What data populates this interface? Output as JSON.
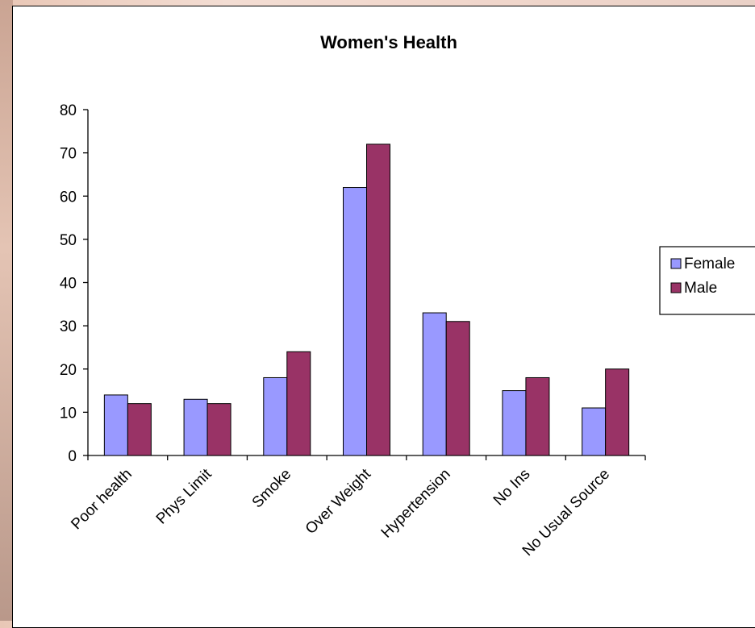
{
  "chart_data": {
    "type": "bar",
    "title": "Women's Health",
    "xlabel": "",
    "ylabel": "",
    "categories": [
      "Poor health",
      "Phys Limit",
      "Smoke",
      "Over Weight",
      "Hypertension",
      "No Ins",
      "No Usual Source"
    ],
    "series": [
      {
        "name": "Female",
        "values": [
          14,
          13,
          18,
          62,
          33,
          15,
          11
        ],
        "color": "#9999ff"
      },
      {
        "name": "Male",
        "values": [
          12,
          12,
          24,
          72,
          31,
          18,
          20
        ],
        "color": "#993366"
      }
    ],
    "ylim": [
      0,
      80
    ],
    "yticks": [
      0,
      10,
      20,
      30,
      40,
      50,
      60,
      70,
      80
    ],
    "grid": false,
    "legend_position": "right"
  }
}
